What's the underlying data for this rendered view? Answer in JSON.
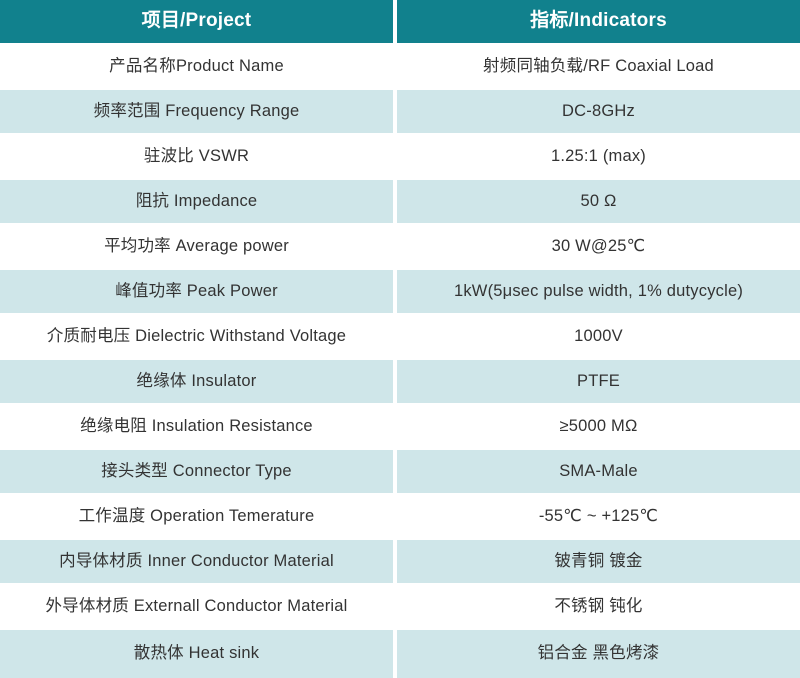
{
  "table": {
    "colors": {
      "header_bg": "#11818d",
      "header_text": "#ffffff",
      "alt_row_bg": "#cfe6e9",
      "row_bg": "#ffffff",
      "text": "#333333"
    },
    "headers": {
      "project": "项目/Project",
      "indicators": "指标/Indicators"
    },
    "rows": [
      {
        "project": "产品名称Product Name",
        "indicator": "射频同轴负载/RF Coaxial Load"
      },
      {
        "project": "频率范围 Frequency Range",
        "indicator": "DC-8GHz"
      },
      {
        "project": "驻波比 VSWR",
        "indicator": "1.25:1 (max)"
      },
      {
        "project": "阻抗 Impedance",
        "indicator": "50 Ω"
      },
      {
        "project": "平均功率 Average power",
        "indicator": "30 W@25℃"
      },
      {
        "project": "峰值功率 Peak Power",
        "indicator": "1kW(5μsec pulse width, 1% dutycycle)"
      },
      {
        "project": "介质耐电压 Dielectric Withstand Voltage",
        "indicator": "1000V"
      },
      {
        "project": "绝缘体 Insulator",
        "indicator": "PTFE"
      },
      {
        "project": "绝缘电阻 Insulation Resistance",
        "indicator": "≥5000 MΩ"
      },
      {
        "project": "接头类型 Connector Type",
        "indicator": "SMA-Male"
      },
      {
        "project": "工作温度 Operation Temerature",
        "indicator": "-55℃ ~ +125℃"
      },
      {
        "project": "内导体材质 Inner Conductor Material",
        "indicator": "铍青铜 镀金"
      },
      {
        "project": "外导体材质 Externall Conductor Material",
        "indicator": "不锈钢 钝化"
      },
      {
        "project": "散热体 Heat sink",
        "indicator": "铝合金 黑色烤漆"
      }
    ]
  }
}
